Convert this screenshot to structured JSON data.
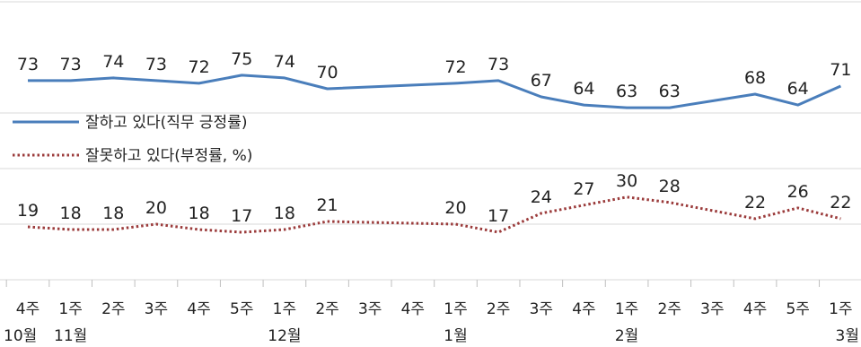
{
  "chart_data": {
    "type": "line",
    "x_weeks": [
      "4주",
      "1주",
      "2주",
      "3주",
      "4주",
      "5주",
      "1주",
      "2주",
      "3주",
      "4주",
      "1주",
      "2주",
      "3주",
      "4주",
      "1주",
      "2주",
      "3주",
      "4주",
      "5주",
      "1주"
    ],
    "x_months": [
      {
        "index": 0,
        "label": "10월"
      },
      {
        "index": 1,
        "label": "11월"
      },
      {
        "index": 6,
        "label": "12월"
      },
      {
        "index": 10,
        "label": "1월"
      },
      {
        "index": 14,
        "label": "2월"
      },
      {
        "index": 19,
        "label": "3월"
      }
    ],
    "series": [
      {
        "name": "잘하고 있다(직무 긍정률)",
        "color": "#4a7ebb",
        "style": "solid",
        "values": [
          73,
          73,
          74,
          73,
          72,
          75,
          74,
          70,
          null,
          null,
          72,
          73,
          67,
          64,
          63,
          63,
          null,
          68,
          64,
          71
        ]
      },
      {
        "name": "잘못하고 있다(부정률, %)",
        "color": "#9b3b3b",
        "style": "dotted",
        "values": [
          19,
          18,
          18,
          20,
          18,
          17,
          18,
          21,
          null,
          null,
          20,
          17,
          24,
          27,
          30,
          28,
          null,
          22,
          26,
          22
        ]
      }
    ],
    "grid": true,
    "legend_position": "middle-left"
  }
}
